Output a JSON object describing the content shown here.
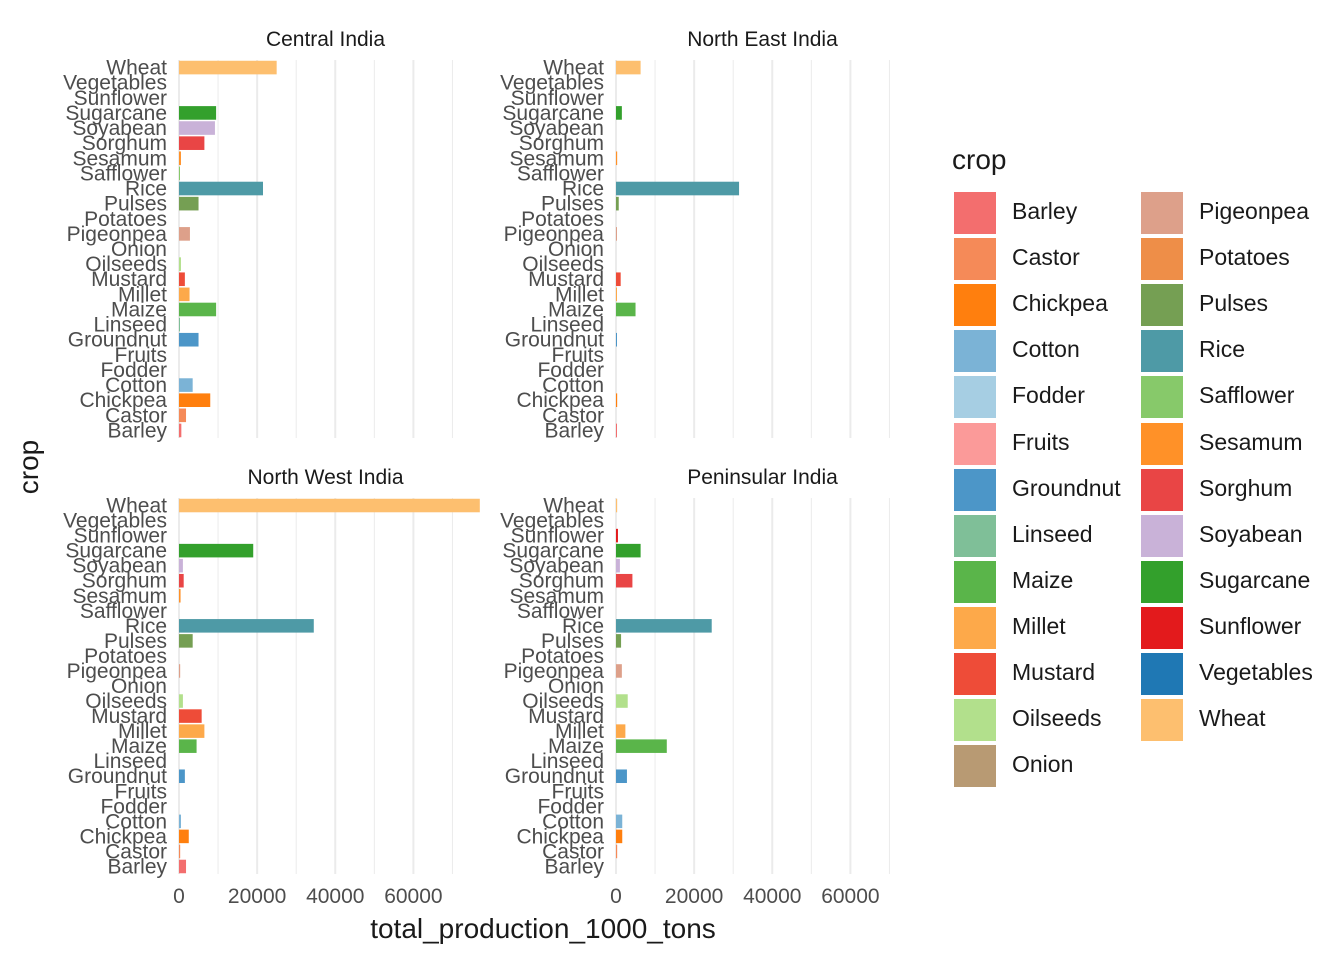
{
  "chart_data": {
    "type": "bar",
    "orientation": "horizontal",
    "facet_by": "region",
    "xlabel": "total_production_1000_tons",
    "ylabel": "crop",
    "xlim": [
      0,
      75000
    ],
    "x_ticks": [
      0,
      20000,
      40000,
      60000
    ],
    "grid": true,
    "legend_title": "crop",
    "legend_position": "right",
    "categories": [
      "Barley",
      "Castor",
      "Chickpea",
      "Cotton",
      "Fodder",
      "Fruits",
      "Groundnut",
      "Linseed",
      "Maize",
      "Millet",
      "Mustard",
      "Oilseeds",
      "Onion",
      "Pigeonpea",
      "Potatoes",
      "Pulses",
      "Rice",
      "Safflower",
      "Sesamum",
      "Sorghum",
      "Soyabean",
      "Sugarcane",
      "Sunflower",
      "Vegetables",
      "Wheat"
    ],
    "colors": {
      "Barley": "#F36E6E",
      "Castor": "#F58A58",
      "Chickpea": "#FF7F0E",
      "Cotton": "#7BB3D6",
      "Fodder": "#A6CEE3",
      "Fruits": "#FB9A99",
      "Groundnut": "#4C96C8",
      "Linseed": "#7FBF98",
      "Maize": "#5AB54A",
      "Millet": "#FDA94A",
      "Mustard": "#EE4C38",
      "Oilseeds": "#B2E08C",
      "Onion": "#B89A73",
      "Pigeonpea": "#DDA08A",
      "Potatoes": "#EE8E48",
      "Pulses": "#759F53",
      "Rice": "#4E9AA6",
      "Safflower": "#87C96A",
      "Sesamum": "#FF9128",
      "Sorghum": "#E94545",
      "Soyabean": "#C9B2D8",
      "Sugarcane": "#33A02C",
      "Sunflower": "#E31A1C",
      "Vegetables": "#1F78B4",
      "Wheat": "#FDBF6F"
    },
    "facets": [
      {
        "title": "Central India",
        "values": {
          "Barley": 600,
          "Castor": 1800,
          "Chickpea": 8000,
          "Cotton": 3500,
          "Fodder": 0,
          "Fruits": 0,
          "Groundnut": 5000,
          "Linseed": 100,
          "Maize": 9500,
          "Millet": 2700,
          "Mustard": 1500,
          "Oilseeds": 500,
          "Onion": 0,
          "Pigeonpea": 2800,
          "Potatoes": 0,
          "Pulses": 5000,
          "Rice": 21500,
          "Safflower": 100,
          "Sesamum": 500,
          "Sorghum": 6500,
          "Soyabean": 9200,
          "Sugarcane": 9500,
          "Sunflower": 0,
          "Vegetables": 0,
          "Wheat": 25000
        }
      },
      {
        "title": "North East India",
        "values": {
          "Barley": 100,
          "Castor": 0,
          "Chickpea": 300,
          "Cotton": 0,
          "Fodder": 0,
          "Fruits": 0,
          "Groundnut": 200,
          "Linseed": 0,
          "Maize": 5000,
          "Millet": 200,
          "Mustard": 1200,
          "Oilseeds": 0,
          "Onion": 0,
          "Pigeonpea": 200,
          "Potatoes": 0,
          "Pulses": 700,
          "Rice": 31500,
          "Safflower": 0,
          "Sesamum": 300,
          "Sorghum": 0,
          "Soyabean": 0,
          "Sugarcane": 1500,
          "Sunflower": 0,
          "Vegetables": 0,
          "Wheat": 6300
        }
      },
      {
        "title": "North West India",
        "values": {
          "Barley": 1800,
          "Castor": 300,
          "Chickpea": 2500,
          "Cotton": 500,
          "Fodder": 0,
          "Fruits": 0,
          "Groundnut": 1500,
          "Linseed": 0,
          "Maize": 4500,
          "Millet": 6500,
          "Mustard": 5800,
          "Oilseeds": 1000,
          "Onion": 0,
          "Pigeonpea": 300,
          "Potatoes": 0,
          "Pulses": 3500,
          "Rice": 34500,
          "Safflower": 0,
          "Sesamum": 400,
          "Sorghum": 1200,
          "Soyabean": 1000,
          "Sugarcane": 19000,
          "Sunflower": 0,
          "Vegetables": 0,
          "Wheat": 77000
        }
      },
      {
        "title": "Peninsular India",
        "values": {
          "Barley": 0,
          "Castor": 300,
          "Chickpea": 1600,
          "Cotton": 1600,
          "Fodder": 0,
          "Fruits": 0,
          "Groundnut": 2800,
          "Linseed": 0,
          "Maize": 13000,
          "Millet": 2400,
          "Mustard": 0,
          "Oilseeds": 3000,
          "Onion": 0,
          "Pigeonpea": 1500,
          "Potatoes": 0,
          "Pulses": 1300,
          "Rice": 24500,
          "Safflower": 0,
          "Sesamum": 0,
          "Sorghum": 4200,
          "Soyabean": 1000,
          "Sugarcane": 6300,
          "Sunflower": 500,
          "Vegetables": 0,
          "Wheat": 300
        }
      }
    ]
  }
}
